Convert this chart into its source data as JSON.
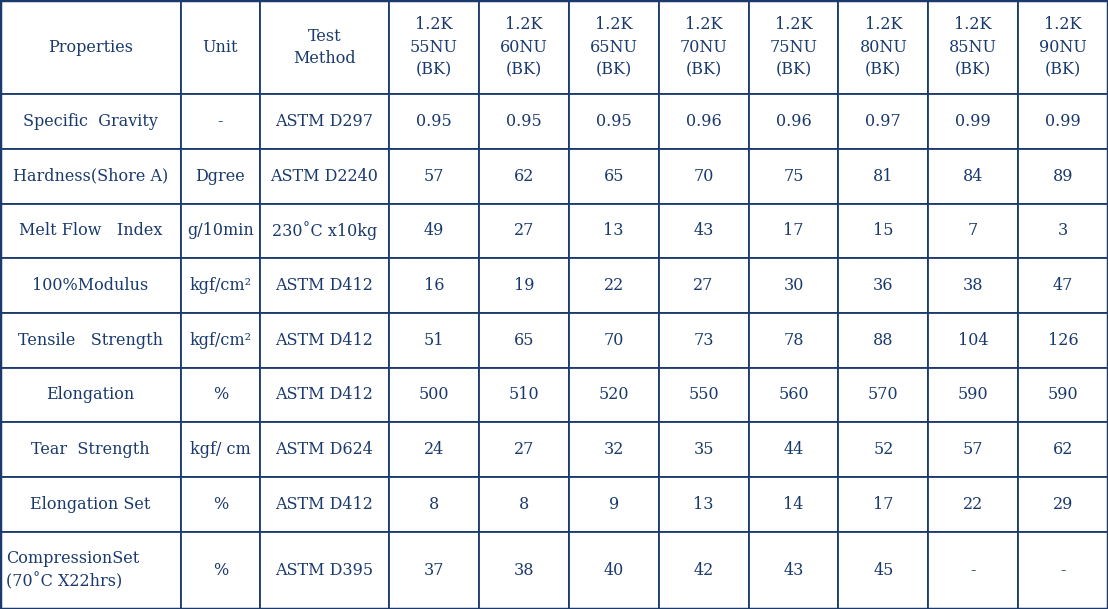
{
  "columns": [
    "Properties",
    "Unit",
    "Test\nMethod",
    "1.2K\n55NU\n(BK)",
    "1.2K\n60NU\n(BK)",
    "1.2K\n65NU\n(BK)",
    "1.2K\n70NU\n(BK)",
    "1.2K\n75NU\n(BK)",
    "1.2K\n80NU\n(BK)",
    "1.2K\n85NU\n(BK)",
    "1.2K\n90NU\n(BK)"
  ],
  "rows": [
    [
      "Specific  Gravity",
      "-",
      "ASTM D297",
      "0.95",
      "0.95",
      "0.95",
      "0.96",
      "0.96",
      "0.97",
      "0.99",
      "0.99"
    ],
    [
      "Hardness(Shore A)",
      "Dgree",
      "ASTM D2240",
      "57",
      "62",
      "65",
      "70",
      "75",
      "81",
      "84",
      "89"
    ],
    [
      "Melt Flow   Index",
      "g/10min",
      "230˚C x10kg",
      "49",
      "27",
      "13",
      "43",
      "17",
      "15",
      "7",
      "3"
    ],
    [
      "100%Modulus",
      "kgf/cm²",
      "ASTM D412",
      "16",
      "19",
      "22",
      "27",
      "30",
      "36",
      "38",
      "47"
    ],
    [
      "Tensile   Strength",
      "kgf/cm²",
      "ASTM D412",
      "51",
      "65",
      "70",
      "73",
      "78",
      "88",
      "104",
      "126"
    ],
    [
      "Elongation",
      "%",
      "ASTM D412",
      "500",
      "510",
      "520",
      "550",
      "560",
      "570",
      "590",
      "590"
    ],
    [
      "Tear  Strength",
      "kgf/ cm",
      "ASTM D624",
      "24",
      "27",
      "32",
      "35",
      "44",
      "52",
      "57",
      "62"
    ],
    [
      "Elongation Set",
      "%",
      "ASTM D412",
      "8",
      "8",
      "9",
      "13",
      "14",
      "17",
      "22",
      "29"
    ],
    [
      "CompressionSet\n(70˚C X22hrs)",
      "%",
      "ASTM D395",
      "37",
      "38",
      "40",
      "42",
      "43",
      "45",
      "-",
      "-"
    ]
  ],
  "col_widths_raw": [
    165,
    72,
    118,
    82,
    82,
    82,
    82,
    82,
    82,
    82,
    82
  ],
  "row_heights_raw": [
    95,
    55,
    55,
    55,
    55,
    55,
    55,
    55,
    55,
    78
  ],
  "text_color": "#1a3a6e",
  "border_color": "#1a3a6e",
  "bg_color": "#ffffff",
  "fontsize": 11.5,
  "fig_width": 11.08,
  "fig_height": 6.09,
  "dpi": 100
}
